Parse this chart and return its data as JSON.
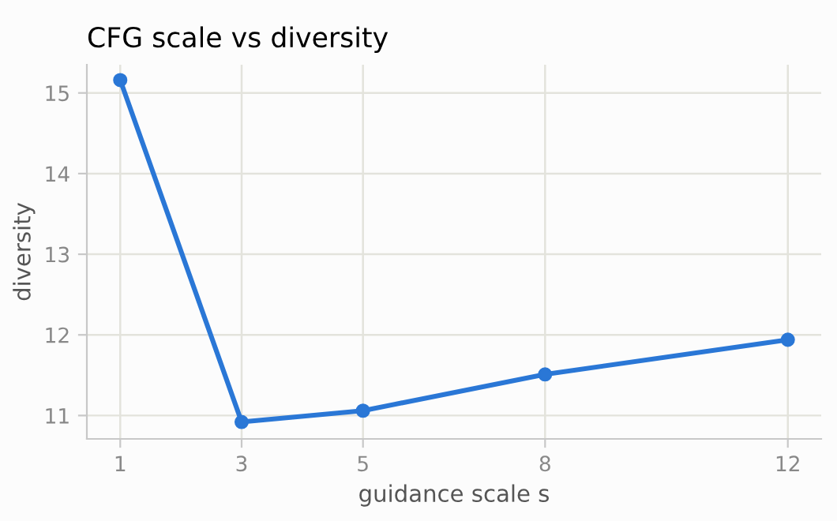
{
  "chart_data": {
    "type": "line",
    "title": "CFG scale vs diversity",
    "xlabel": "guidance scale s",
    "ylabel": "diversity",
    "x": [
      1,
      3,
      5,
      8,
      12
    ],
    "series": [
      {
        "color": "#2a77d6",
        "values": [
          15.16,
          10.92,
          11.06,
          11.51,
          11.94
        ]
      }
    ],
    "xlim": [
      0.45,
      12.55
    ],
    "xticks": [
      1,
      3,
      5,
      8,
      12
    ],
    "ylim": [
      10.71,
      15.35
    ],
    "yticks": [
      11,
      12,
      13,
      14,
      15
    ],
    "grid": true,
    "marker": "circle",
    "line_style": "solid",
    "legend": false
  }
}
